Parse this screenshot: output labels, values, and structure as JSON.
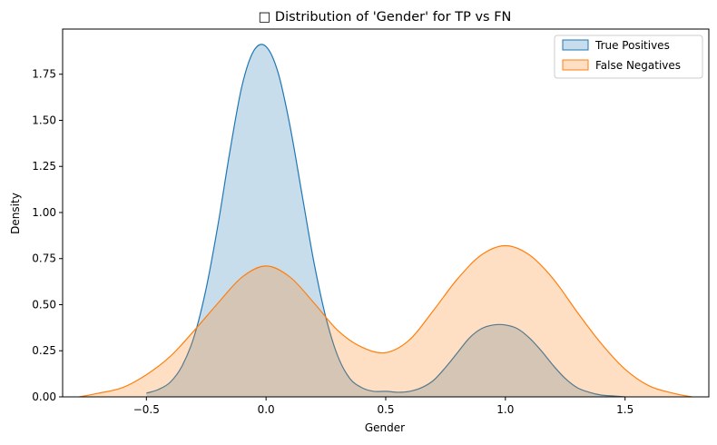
{
  "chart_data": {
    "type": "area",
    "title": "□ Distribution of 'Gender' for TP vs FN",
    "xlabel": "Gender",
    "ylabel": "Density",
    "xlim": [
      -0.85,
      1.85
    ],
    "ylim": [
      0,
      1.995
    ],
    "x_ticks": [
      -0.5,
      0.0,
      0.5,
      1.0,
      1.5
    ],
    "x_tick_labels": [
      "−0.5",
      "0.0",
      "0.5",
      "1.0",
      "1.5"
    ],
    "y_ticks": [
      0.0,
      0.25,
      0.5,
      0.75,
      1.0,
      1.25,
      1.5,
      1.75
    ],
    "y_tick_labels": [
      "0.00",
      "0.25",
      "0.50",
      "0.75",
      "1.00",
      "1.25",
      "1.50",
      "1.75"
    ],
    "legend_position": "top-right",
    "grid": false,
    "series": [
      {
        "name": "True Positives",
        "color": "#1f77b4",
        "fill": "rgba(31,119,180,0.25)",
        "x": [
          -0.5,
          -0.45,
          -0.4,
          -0.35,
          -0.3,
          -0.25,
          -0.2,
          -0.15,
          -0.1,
          -0.05,
          0.0,
          0.05,
          0.1,
          0.15,
          0.2,
          0.25,
          0.3,
          0.35,
          0.4,
          0.45,
          0.5,
          0.55,
          0.6,
          0.65,
          0.7,
          0.75,
          0.8,
          0.85,
          0.9,
          0.95,
          1.0,
          1.05,
          1.1,
          1.15,
          1.2,
          1.25,
          1.3,
          1.35,
          1.4,
          1.45,
          1.5
        ],
        "y": [
          0.02,
          0.04,
          0.08,
          0.17,
          0.33,
          0.59,
          0.94,
          1.34,
          1.69,
          1.88,
          1.9,
          1.76,
          1.47,
          1.1,
          0.73,
          0.43,
          0.22,
          0.1,
          0.05,
          0.03,
          0.03,
          0.025,
          0.03,
          0.05,
          0.09,
          0.16,
          0.24,
          0.32,
          0.37,
          0.39,
          0.39,
          0.37,
          0.32,
          0.25,
          0.17,
          0.1,
          0.05,
          0.025,
          0.01,
          0.005,
          0.0
        ]
      },
      {
        "name": "False Negatives",
        "color": "#ff7f0e",
        "fill": "rgba(255,127,14,0.25)",
        "x": [
          -0.78,
          -0.7,
          -0.6,
          -0.5,
          -0.4,
          -0.3,
          -0.2,
          -0.1,
          0.0,
          0.1,
          0.2,
          0.3,
          0.4,
          0.5,
          0.6,
          0.7,
          0.8,
          0.9,
          1.0,
          1.1,
          1.2,
          1.3,
          1.4,
          1.5,
          1.6,
          1.7,
          1.78
        ],
        "y": [
          0.0,
          0.02,
          0.05,
          0.12,
          0.22,
          0.36,
          0.51,
          0.65,
          0.71,
          0.65,
          0.51,
          0.36,
          0.27,
          0.24,
          0.31,
          0.47,
          0.64,
          0.77,
          0.82,
          0.77,
          0.64,
          0.46,
          0.29,
          0.15,
          0.06,
          0.02,
          0.0
        ]
      }
    ]
  }
}
